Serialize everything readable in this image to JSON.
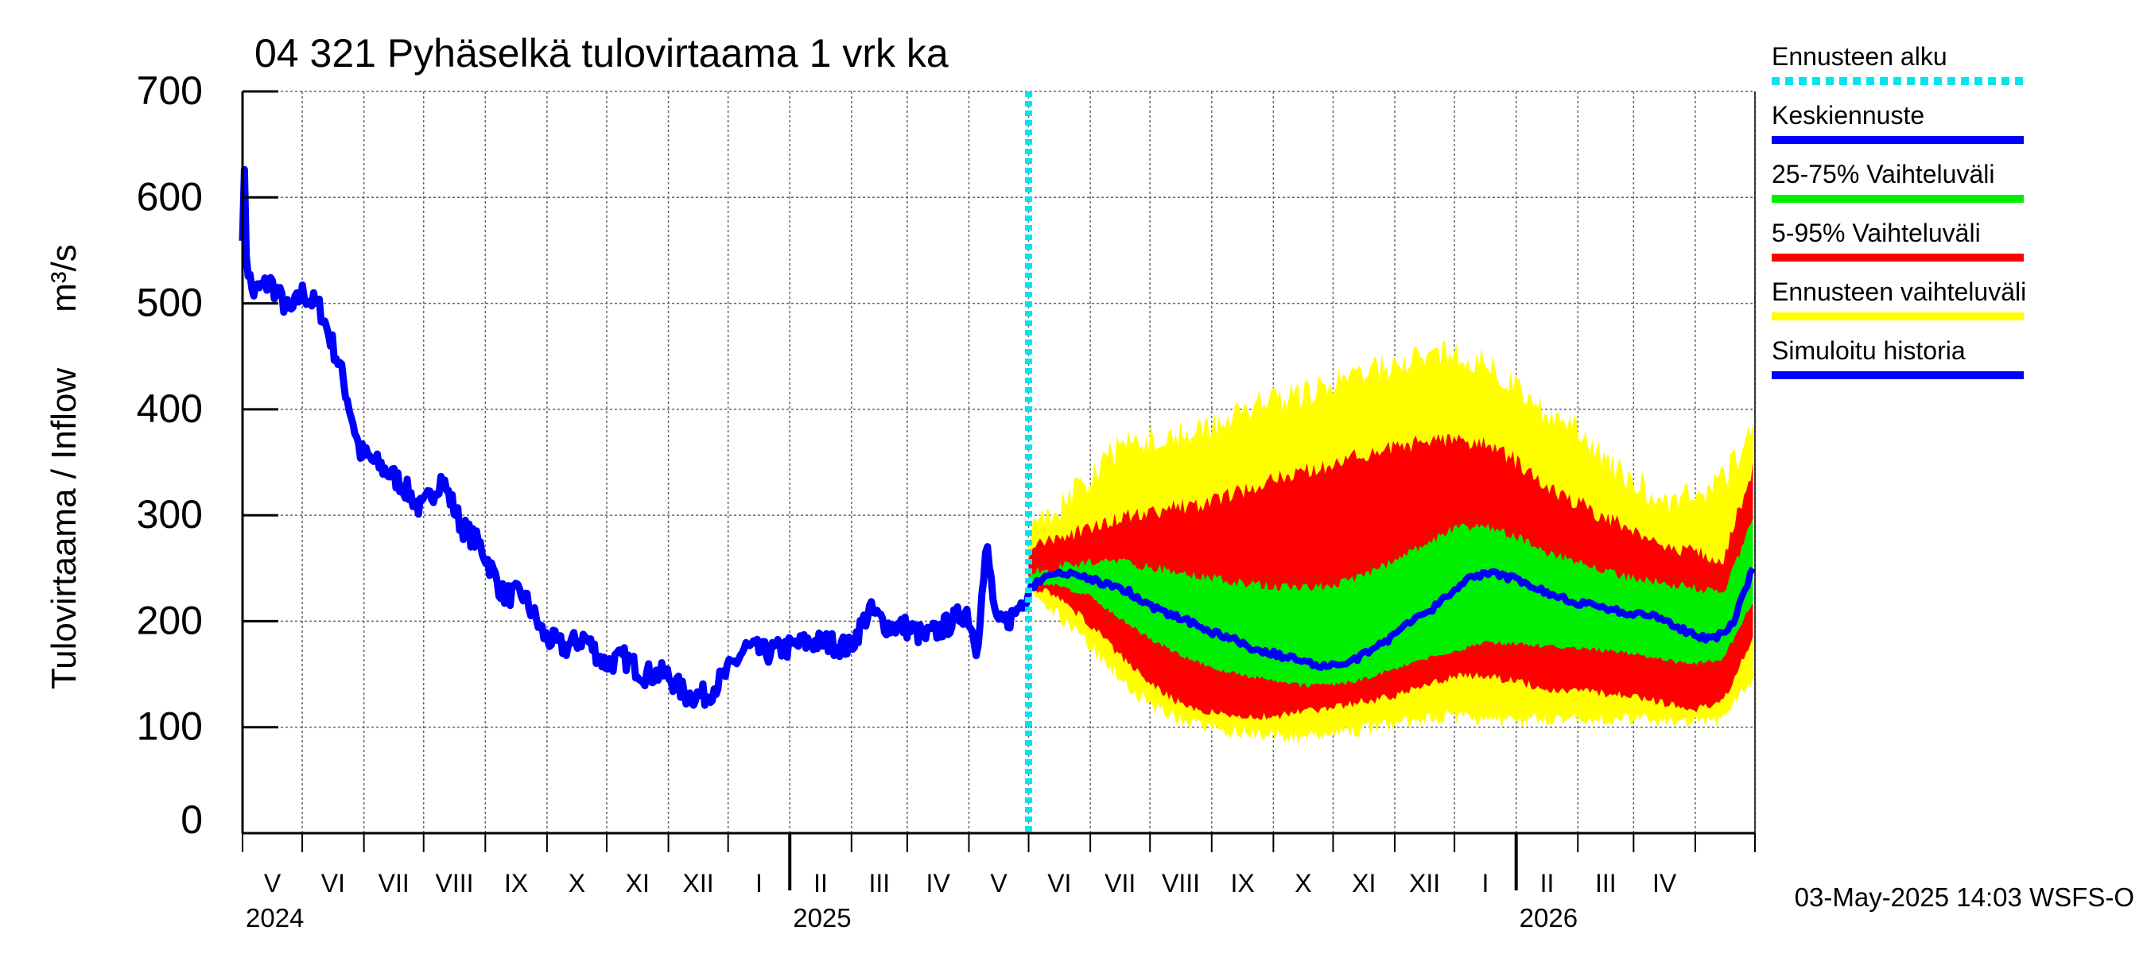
{
  "chart_data": {
    "type": "area",
    "title": "04 321 Pyhäselkä tulovirtaama 1 vrk ka",
    "ylabel": "Tulovirtaama / Inflow",
    "yunit": "m³/s",
    "ylim": [
      0,
      700
    ],
    "yticks": [
      0,
      100,
      200,
      300,
      400,
      500,
      600,
      700
    ],
    "xlim": [
      "2024-04-01",
      "2026-05-01"
    ],
    "grid": true,
    "month_labels": [
      "V",
      "VI",
      "VII",
      "VIII",
      "IX",
      "X",
      "XI",
      "XII",
      "I",
      "II",
      "III",
      "IV",
      "V",
      "VI",
      "VII",
      "VIII",
      "IX",
      "X",
      "XI",
      "XII",
      "I",
      "II",
      "III",
      "IV"
    ],
    "year_labels": [
      {
        "label": "2024",
        "date": "2024-04-01"
      },
      {
        "label": "2025",
        "date": "2025-01-01"
      },
      {
        "label": "2026",
        "date": "2026-01-01"
      }
    ],
    "forecast_start": "2025-05-01",
    "footer": "03-May-2025 14:03 WSFS-O",
    "legend": {
      "position": "right",
      "entries": [
        {
          "name": "Ennusteen alku",
          "color": "#00e5ee",
          "style": "dotted"
        },
        {
          "name": "Keskiennuste",
          "color": "#0000ff",
          "style": "solid"
        },
        {
          "name": "25-75% Vaihteluväli",
          "color": "#00ee00",
          "style": "solid"
        },
        {
          "name": "5-95% Vaihteluväli",
          "color": "#ff0000",
          "style": "solid"
        },
        {
          "name": "Ennusteen vaihteluväli",
          "color": "#ffff00",
          "style": "solid"
        },
        {
          "name": "Simuloitu historia",
          "color": "#0000ff",
          "style": "solid"
        }
      ]
    },
    "series": [
      {
        "name": "Simuloitu historia",
        "color": "#0000ff",
        "x": [
          "2024-04-01",
          "2024-04-02",
          "2024-04-03",
          "2024-04-06",
          "2024-04-15",
          "2024-04-25",
          "2024-05-01",
          "2024-05-10",
          "2024-05-20",
          "2024-05-30",
          "2024-06-10",
          "2024-06-20",
          "2024-06-30",
          "2024-07-10",
          "2024-07-20",
          "2024-07-30",
          "2024-08-10",
          "2024-08-20",
          "2024-08-31",
          "2024-09-10",
          "2024-09-20",
          "2024-09-30",
          "2024-10-10",
          "2024-10-20",
          "2024-10-31",
          "2024-11-10",
          "2024-11-20",
          "2024-11-30",
          "2024-12-10",
          "2024-12-20",
          "2024-12-31",
          "2025-01-10",
          "2025-01-20",
          "2025-01-31",
          "2025-02-10",
          "2025-02-20",
          "2025-02-28",
          "2025-03-10",
          "2025-03-20",
          "2025-03-31",
          "2025-04-05",
          "2025-04-10",
          "2025-04-15",
          "2025-04-20",
          "2025-04-25",
          "2025-05-01"
        ],
        "values": [
          570,
          620,
          540,
          510,
          520,
          490,
          510,
          495,
          440,
          360,
          345,
          330,
          305,
          335,
          290,
          270,
          225,
          225,
          185,
          175,
          185,
          160,
          165,
          150,
          150,
          130,
          130,
          150,
          175,
          170,
          175,
          180,
          180,
          175,
          210,
          195,
          195,
          185,
          195,
          210,
          175,
          270,
          195,
          200,
          210,
          230
        ]
      },
      {
        "name": "Keskiennuste",
        "color": "#0000ff",
        "x": [
          "2025-05-01",
          "2025-05-10",
          "2025-05-20",
          "2025-05-31",
          "2025-06-10",
          "2025-06-20",
          "2025-06-30",
          "2025-07-10",
          "2025-07-20",
          "2025-07-31",
          "2025-08-10",
          "2025-08-20",
          "2025-08-31",
          "2025-09-10",
          "2025-09-20",
          "2025-09-30",
          "2025-10-10",
          "2025-10-20",
          "2025-10-31",
          "2025-11-10",
          "2025-11-20",
          "2025-11-30",
          "2025-12-10",
          "2025-12-20",
          "2025-12-31",
          "2026-01-10",
          "2026-01-20",
          "2026-01-31",
          "2026-02-10",
          "2026-02-20",
          "2026-02-28",
          "2026-03-10",
          "2026-03-20",
          "2026-03-31",
          "2026-04-10",
          "2026-04-20",
          "2026-04-30"
        ],
        "values": [
          230,
          243,
          245,
          240,
          235,
          228,
          215,
          207,
          200,
          190,
          185,
          175,
          170,
          165,
          160,
          158,
          162,
          172,
          185,
          200,
          212,
          228,
          242,
          245,
          240,
          232,
          225,
          218,
          215,
          210,
          207,
          205,
          197,
          187,
          183,
          198,
          250
        ]
      }
    ],
    "bands": [
      {
        "name": "Ennusteen vaihteluväli",
        "color": "#ffff00",
        "x": [
          "2025-05-01",
          "2025-05-15",
          "2025-05-31",
          "2025-06-15",
          "2025-06-30",
          "2025-07-15",
          "2025-07-31",
          "2025-08-15",
          "2025-08-31",
          "2025-09-15",
          "2025-09-30",
          "2025-10-15",
          "2025-10-31",
          "2025-11-15",
          "2025-11-30",
          "2025-12-15",
          "2025-12-31",
          "2026-01-15",
          "2026-01-31",
          "2026-02-15",
          "2026-02-28",
          "2026-03-15",
          "2026-03-31",
          "2026-04-15",
          "2026-04-30"
        ],
        "low": [
          230,
          210,
          180,
          150,
          125,
          110,
          100,
          98,
          95,
          92,
          95,
          100,
          105,
          110,
          112,
          110,
          108,
          108,
          110,
          110,
          110,
          108,
          106,
          110,
          150
        ],
        "high": [
          280,
          300,
          330,
          360,
          370,
          370,
          380,
          395,
          405,
          410,
          420,
          430,
          440,
          445,
          450,
          440,
          420,
          395,
          375,
          345,
          330,
          310,
          315,
          330,
          375
        ]
      },
      {
        "name": "5-95% Vaihteluväli",
        "color": "#ff0000",
        "x": [
          "2025-05-01",
          "2025-05-15",
          "2025-05-31",
          "2025-06-15",
          "2025-06-30",
          "2025-07-15",
          "2025-07-31",
          "2025-08-15",
          "2025-08-31",
          "2025-09-15",
          "2025-09-30",
          "2025-10-15",
          "2025-10-31",
          "2025-11-15",
          "2025-11-30",
          "2025-12-15",
          "2025-12-31",
          "2026-01-15",
          "2026-01-31",
          "2026-02-15",
          "2026-02-28",
          "2026-03-15",
          "2026-03-31",
          "2026-04-15",
          "2026-04-30"
        ],
        "low": [
          235,
          225,
          200,
          170,
          145,
          125,
          115,
          112,
          112,
          115,
          120,
          125,
          130,
          140,
          148,
          150,
          145,
          138,
          135,
          133,
          130,
          125,
          118,
          125,
          185
        ],
        "high": [
          265,
          275,
          285,
          295,
          300,
          305,
          310,
          320,
          330,
          340,
          345,
          355,
          360,
          368,
          370,
          365,
          350,
          325,
          310,
          295,
          285,
          270,
          262,
          255,
          345
        ]
      },
      {
        "name": "25-75% Vaihteluväli",
        "color": "#00ee00",
        "x": [
          "2025-05-01",
          "2025-05-15",
          "2025-05-31",
          "2025-06-15",
          "2025-06-30",
          "2025-07-15",
          "2025-07-31",
          "2025-08-15",
          "2025-08-31",
          "2025-09-15",
          "2025-09-30",
          "2025-10-15",
          "2025-10-31",
          "2025-11-15",
          "2025-11-30",
          "2025-12-15",
          "2025-12-31",
          "2026-01-15",
          "2026-01-31",
          "2026-02-15",
          "2026-02-28",
          "2026-03-15",
          "2026-03-31",
          "2026-04-15",
          "2026-04-30"
        ],
        "low": [
          235,
          235,
          225,
          205,
          185,
          170,
          158,
          150,
          145,
          140,
          140,
          145,
          155,
          165,
          172,
          180,
          180,
          177,
          175,
          173,
          170,
          165,
          160,
          165,
          220
        ],
        "high": [
          245,
          250,
          255,
          255,
          250,
          245,
          240,
          235,
          232,
          230,
          232,
          240,
          255,
          270,
          285,
          290,
          280,
          265,
          255,
          245,
          240,
          235,
          230,
          225,
          295
        ]
      }
    ]
  }
}
